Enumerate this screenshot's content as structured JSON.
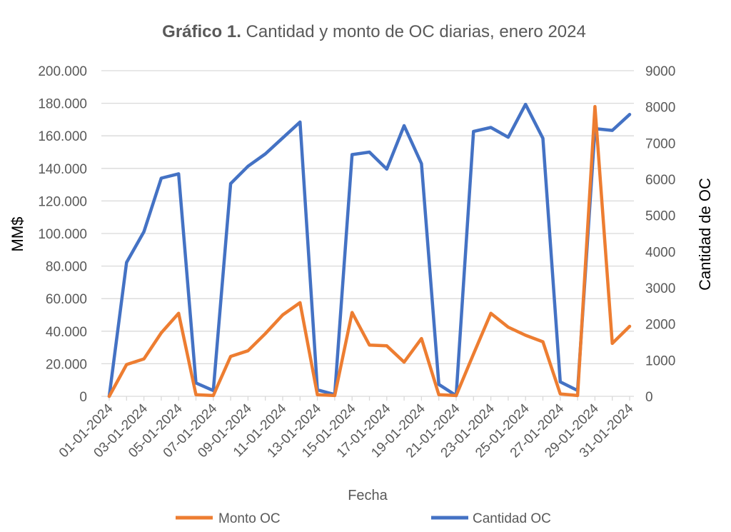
{
  "chart_data": {
    "type": "line",
    "title_bold": "Gráfico 1.",
    "title_rest": " Cantidad y monto de OC diarias, enero 2024",
    "xlabel": "Fecha",
    "ylabel_left": "MM$",
    "ylabel_right": "Cantidad de OC",
    "ylim_left": [
      0,
      200000
    ],
    "ylim_right": [
      0,
      9000
    ],
    "yticks_left": [
      "0",
      "20.000",
      "40.000",
      "60.000",
      "80.000",
      "100.000",
      "120.000",
      "140.000",
      "160.000",
      "180.000",
      "200.000"
    ],
    "yticks_right": [
      "0",
      "1000",
      "2000",
      "3000",
      "4000",
      "5000",
      "6000",
      "7000",
      "8000",
      "9000"
    ],
    "grid": true,
    "legend_position": "bottom",
    "x": [
      "01-01-2024",
      "02-01-2024",
      "03-01-2024",
      "04-01-2024",
      "05-01-2024",
      "06-01-2024",
      "07-01-2024",
      "08-01-2024",
      "09-01-2024",
      "10-01-2024",
      "11-01-2024",
      "12-01-2024",
      "13-01-2024",
      "14-01-2024",
      "15-01-2024",
      "16-01-2024",
      "17-01-2024",
      "18-01-2024",
      "19-01-2024",
      "20-01-2024",
      "21-01-2024",
      "22-01-2024",
      "23-01-2024",
      "24-01-2024",
      "25-01-2024",
      "26-01-2024",
      "27-01-2024",
      "28-01-2024",
      "29-01-2024",
      "30-01-2024",
      "31-01-2024"
    ],
    "x_tick_labels": [
      "01-01-2024",
      "03-01-2024",
      "05-01-2024",
      "07-01-2024",
      "09-01-2024",
      "11-01-2024",
      "13-01-2024",
      "15-01-2024",
      "17-01-2024",
      "19-01-2024",
      "21-01-2024",
      "23-01-2024",
      "25-01-2024",
      "27-01-2024",
      "29-01-2024",
      "31-01-2024"
    ],
    "series": [
      {
        "name": "Monto OC",
        "axis": "left",
        "color": "#ED7D31",
        "values": [
          0,
          19500,
          23000,
          39000,
          51000,
          1000,
          500,
          24500,
          28000,
          38500,
          50000,
          57500,
          1000,
          500,
          51500,
          31500,
          31000,
          21000,
          35500,
          1000,
          500,
          26000,
          51000,
          42500,
          37500,
          33500,
          1500,
          500,
          178000,
          32500,
          43000
        ]
      },
      {
        "name": "Cantidad OC",
        "axis": "right",
        "color": "#4472C4",
        "values": [
          0,
          3700,
          4550,
          6030,
          6150,
          370,
          160,
          5880,
          6360,
          6700,
          7140,
          7580,
          180,
          50,
          6680,
          6750,
          6280,
          7480,
          6430,
          330,
          20,
          7320,
          7430,
          7160,
          8070,
          7130,
          400,
          160,
          7400,
          7350,
          7790
        ]
      }
    ]
  }
}
